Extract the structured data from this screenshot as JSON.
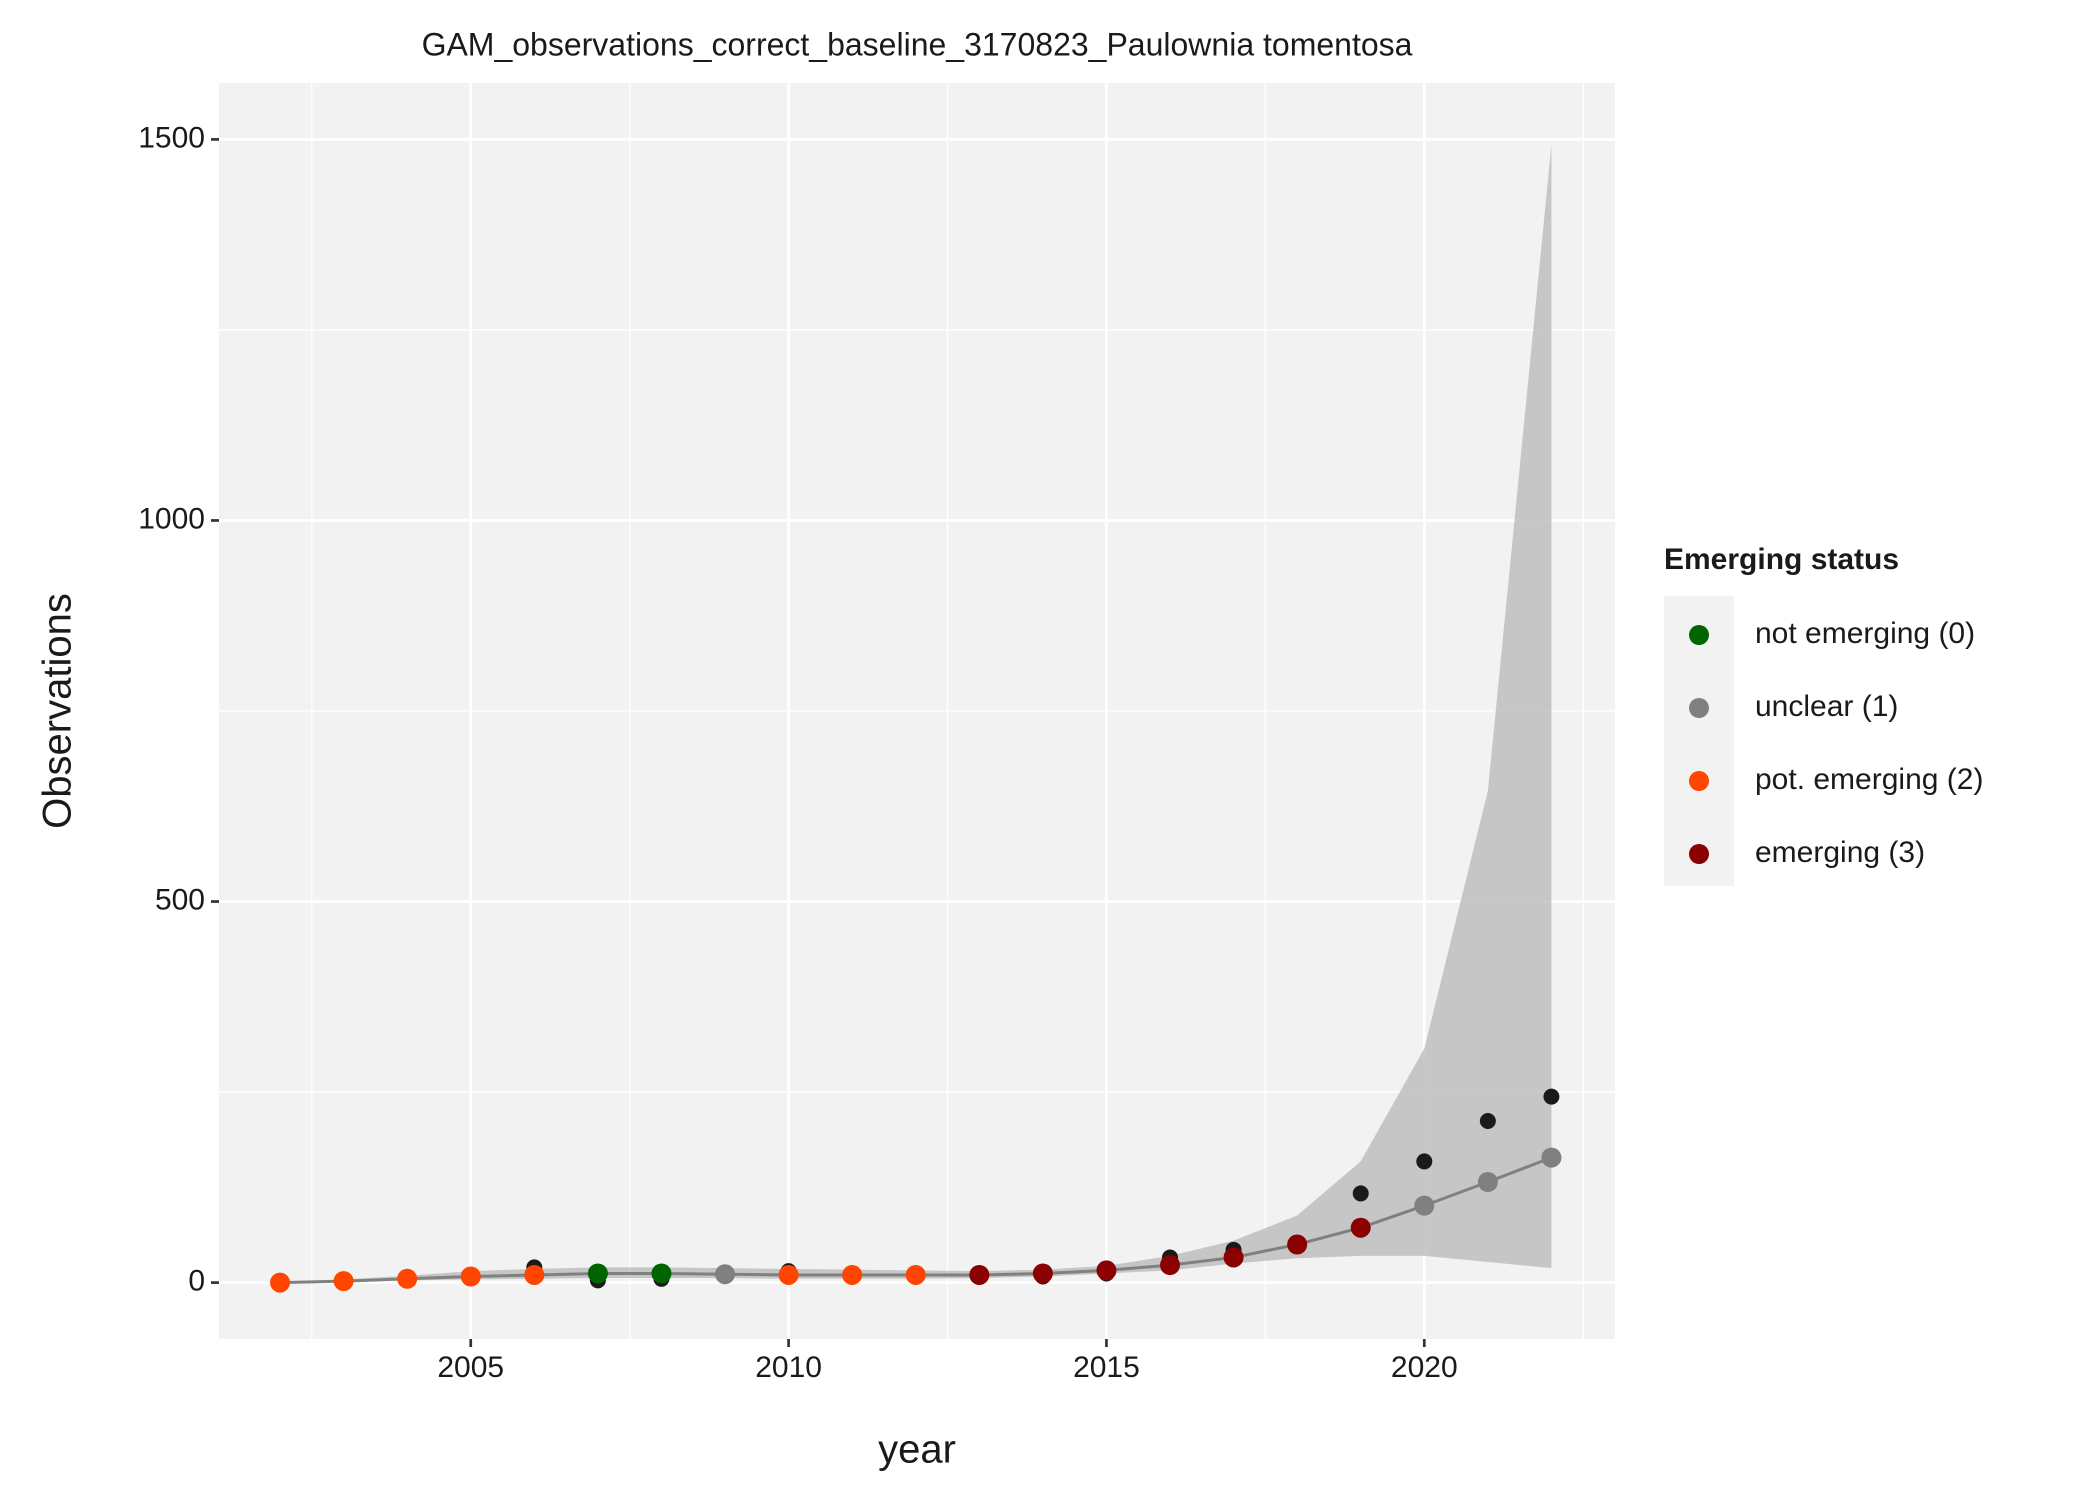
{
  "chart_data": {
    "type": "line",
    "title": "GAM_observations_correct_baseline_3170823_Paulownia tomentosa",
    "x_label": "year",
    "y_label": "Observations",
    "x": [
      2002,
      2003,
      2004,
      2005,
      2006,
      2007,
      2008,
      2009,
      2010,
      2011,
      2012,
      2013,
      2014,
      2015,
      2016,
      2017,
      2018,
      2019,
      2020,
      2021,
      2022
    ],
    "observed": [
      0,
      1,
      3,
      6,
      20,
      3,
      5,
      10,
      15,
      8,
      8,
      8,
      8,
      12,
      33,
      43,
      50,
      117,
      159,
      212,
      244
    ],
    "fitted": [
      0,
      2,
      5,
      8,
      10,
      12,
      12,
      11,
      10,
      10,
      10,
      10,
      12,
      16,
      23,
      33,
      50,
      72,
      101,
      132,
      164
    ],
    "lower": [
      0,
      1,
      3,
      4,
      5,
      6,
      6,
      6,
      5,
      5,
      5,
      6,
      8,
      12,
      16,
      25,
      32,
      35,
      35,
      27,
      19
    ],
    "upper": [
      1,
      4,
      9,
      15,
      18,
      20,
      20,
      19,
      18,
      17,
      16,
      15,
      17,
      22,
      35,
      55,
      88,
      159,
      307,
      645,
      1493
    ],
    "status": [
      2,
      2,
      2,
      2,
      2,
      0,
      0,
      1,
      2,
      2,
      2,
      3,
      3,
      3,
      3,
      3,
      3,
      3,
      1,
      1,
      1
    ],
    "observed_color": "#1a1a1a",
    "fit_color": "#808080",
    "band_color": "#bebebe",
    "legend": {
      "title": "Emerging status",
      "items": [
        {
          "label": "not emerging (0)",
          "color": "#006400"
        },
        {
          "label": "unclear (1)",
          "color": "#808080"
        },
        {
          "label": "pot. emerging (2)",
          "color": "#ff4500"
        },
        {
          "label": "emerging (3)",
          "color": "#8b0000"
        }
      ]
    },
    "xlim": [
      2001.04,
      2023.0
    ],
    "ylim": [
      -74,
      1574
    ],
    "xticks": [
      2005,
      2010,
      2015,
      2020
    ],
    "yticks": [
      0,
      500,
      1000,
      1500
    ],
    "grid": true
  }
}
